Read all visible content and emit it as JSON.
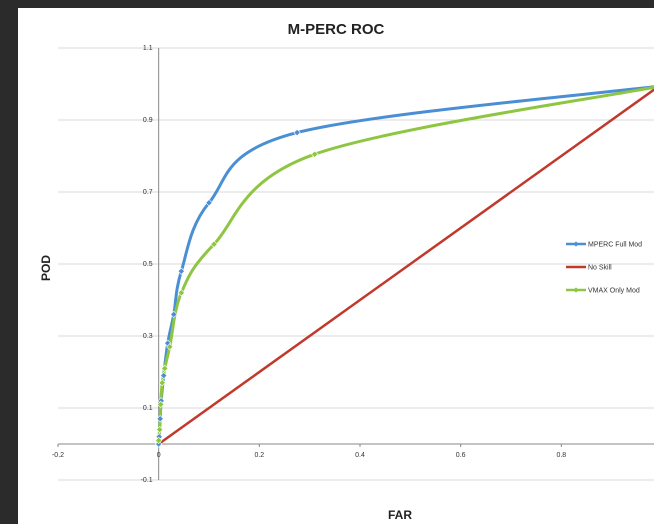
{
  "chart_data": {
    "type": "line",
    "title": "M-PERC ROC",
    "xlabel": "FAR",
    "ylabel": "POD",
    "xlim": [
      -0.2,
      1.0
    ],
    "ylim": [
      -0.1,
      1.1
    ],
    "xticks": [
      "-0.2",
      "0",
      "0.2",
      "0.4",
      "0.6",
      "0.8"
    ],
    "yticks": [
      "-0.1",
      "0.1",
      "0.3",
      "0.5",
      "0.7",
      "0.9",
      "1.1"
    ],
    "legend_position": "right",
    "series": [
      {
        "name": "MPERC Full Mod",
        "color": "#4a8fd4",
        "marker": "diamond",
        "x": [
          0.0,
          0.001,
          0.003,
          0.005,
          0.01,
          0.018,
          0.03,
          0.045,
          0.1,
          0.275,
          1.0
        ],
        "y": [
          0.0,
          0.02,
          0.07,
          0.12,
          0.19,
          0.28,
          0.36,
          0.48,
          0.67,
          0.865,
          0.995
        ]
      },
      {
        "name": "No Skill",
        "color": "#c0392b",
        "marker": "none",
        "x": [
          0.0,
          1.0
        ],
        "y": [
          0.0,
          1.0
        ]
      },
      {
        "name": "VMAX Only Mod",
        "color": "#8ec641",
        "marker": "diamond",
        "x": [
          0.0,
          0.002,
          0.004,
          0.007,
          0.012,
          0.022,
          0.045,
          0.11,
          0.31,
          1.0
        ],
        "y": [
          0.01,
          0.04,
          0.11,
          0.17,
          0.21,
          0.27,
          0.42,
          0.555,
          0.805,
          0.995
        ]
      }
    ]
  }
}
